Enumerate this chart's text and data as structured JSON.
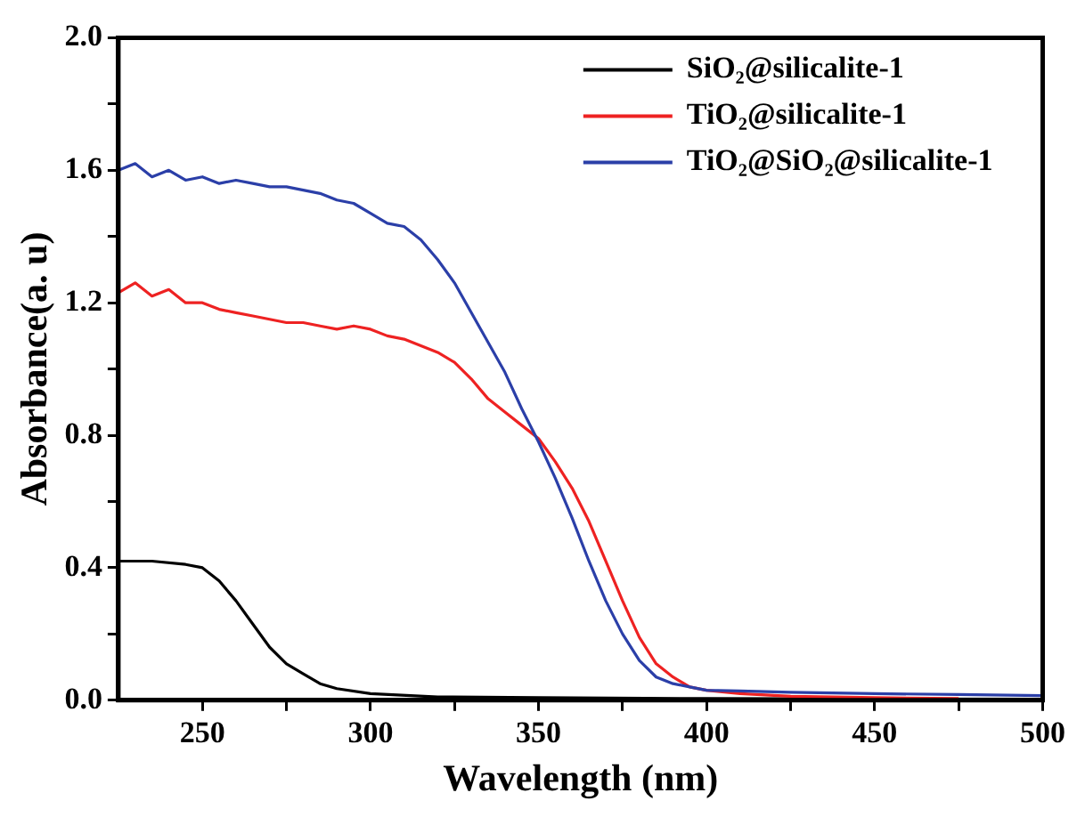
{
  "chart_data": {
    "type": "line",
    "xlabel": "Wavelength (nm)",
    "ylabel": "Absorbance(a. u)",
    "xlim": [
      225,
      500
    ],
    "ylim": [
      0,
      2.0
    ],
    "xticks": [
      250,
      {
        "value": 275,
        "label": null
      },
      300,
      {
        "value": 325,
        "label": null
      },
      350,
      {
        "value": 375,
        "label": null
      },
      400,
      {
        "value": 425,
        "label": null
      },
      450,
      {
        "value": 475,
        "label": null
      },
      500
    ],
    "yticks": [
      {
        "value": 0,
        "label": "0.0"
      },
      {
        "value": 0.2,
        "label": null
      },
      {
        "value": 0.4,
        "label": "0.4"
      },
      {
        "value": 0.6,
        "label": null
      },
      {
        "value": 0.8,
        "label": "0.8"
      },
      {
        "value": 1.0,
        "label": null
      },
      {
        "value": 1.2,
        "label": "1.2"
      },
      {
        "value": 1.4,
        "label": null
      },
      {
        "value": 1.6,
        "label": "1.6"
      },
      {
        "value": 1.8,
        "label": null
      },
      {
        "value": 2.0,
        "label": "2.0"
      }
    ],
    "grid": false,
    "legend": "top right",
    "marker": "none",
    "line_style": "solid",
    "series": [
      {
        "name": "SiO₂@silicalite-1",
        "color": "#000000",
        "x": [
          225,
          235,
          245,
          250,
          255,
          260,
          265,
          270,
          275,
          280,
          285,
          290,
          300,
          320,
          350,
          400,
          450,
          500
        ],
        "values": [
          0.42,
          0.42,
          0.41,
          0.4,
          0.36,
          0.3,
          0.23,
          0.16,
          0.11,
          0.08,
          0.05,
          0.035,
          0.02,
          0.01,
          0.008,
          0.005,
          0.004,
          0.003
        ]
      },
      {
        "name": "TiO₂@silicalite-1",
        "color": "#ee2222",
        "x": [
          225,
          230,
          235,
          240,
          245,
          250,
          255,
          260,
          265,
          270,
          275,
          280,
          285,
          290,
          295,
          300,
          305,
          310,
          315,
          320,
          325,
          330,
          335,
          340,
          345,
          350,
          355,
          360,
          365,
          370,
          375,
          380,
          385,
          390,
          395,
          400,
          410,
          425,
          450,
          475
        ],
        "values": [
          1.23,
          1.26,
          1.22,
          1.24,
          1.2,
          1.2,
          1.18,
          1.17,
          1.16,
          1.15,
          1.14,
          1.14,
          1.13,
          1.12,
          1.13,
          1.12,
          1.1,
          1.09,
          1.07,
          1.05,
          1.02,
          0.97,
          0.91,
          0.87,
          0.83,
          0.79,
          0.72,
          0.64,
          0.54,
          0.42,
          0.3,
          0.19,
          0.11,
          0.07,
          0.04,
          0.03,
          0.02,
          0.012,
          0.008,
          0.005
        ]
      },
      {
        "name": "TiO₂@SiO₂@silicalite-1",
        "color": "#2b3fa8",
        "x": [
          225,
          230,
          235,
          240,
          245,
          250,
          255,
          260,
          265,
          270,
          275,
          280,
          285,
          290,
          295,
          300,
          305,
          310,
          315,
          320,
          325,
          330,
          335,
          340,
          345,
          350,
          355,
          360,
          365,
          370,
          375,
          380,
          385,
          390,
          395,
          400,
          410,
          425,
          450,
          475,
          500
        ],
        "values": [
          1.6,
          1.62,
          1.58,
          1.6,
          1.57,
          1.58,
          1.56,
          1.57,
          1.56,
          1.55,
          1.55,
          1.54,
          1.53,
          1.51,
          1.5,
          1.47,
          1.44,
          1.43,
          1.39,
          1.33,
          1.26,
          1.17,
          1.08,
          0.99,
          0.88,
          0.78,
          0.67,
          0.55,
          0.42,
          0.3,
          0.2,
          0.12,
          0.07,
          0.05,
          0.04,
          0.03,
          0.028,
          0.024,
          0.02,
          0.017,
          0.014
        ]
      }
    ]
  }
}
